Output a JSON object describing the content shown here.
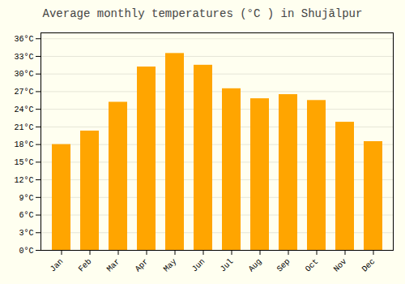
{
  "chart_data": {
    "type": "bar",
    "title": "Average monthly temperatures (°C ) in Shujālpur",
    "categories": [
      "Jan",
      "Feb",
      "Mar",
      "Apr",
      "May",
      "Jun",
      "Jul",
      "Aug",
      "Sep",
      "Oct",
      "Nov",
      "Dec"
    ],
    "values": [
      18.0,
      20.3,
      25.2,
      31.2,
      33.5,
      31.5,
      27.5,
      25.8,
      26.5,
      25.5,
      21.8,
      18.5
    ],
    "color": "#FFA500",
    "ylim": [
      0,
      37
    ],
    "yticks": [
      {
        "value": 0,
        "label": "0°C"
      },
      {
        "value": 3,
        "label": "3°C"
      },
      {
        "value": 6,
        "label": "6°C"
      },
      {
        "value": 9,
        "label": "9°C"
      },
      {
        "value": 12,
        "label": "12°C"
      },
      {
        "value": 15,
        "label": "15°C"
      },
      {
        "value": 18,
        "label": "18°C"
      },
      {
        "value": 21,
        "label": "21°C"
      },
      {
        "value": 24,
        "label": "24°C"
      },
      {
        "value": 27,
        "label": "27°C"
      },
      {
        "value": 30,
        "label": "30°C"
      },
      {
        "value": 33,
        "label": "33°C"
      },
      {
        "value": 36,
        "label": "36°C"
      }
    ],
    "grid": true
  }
}
